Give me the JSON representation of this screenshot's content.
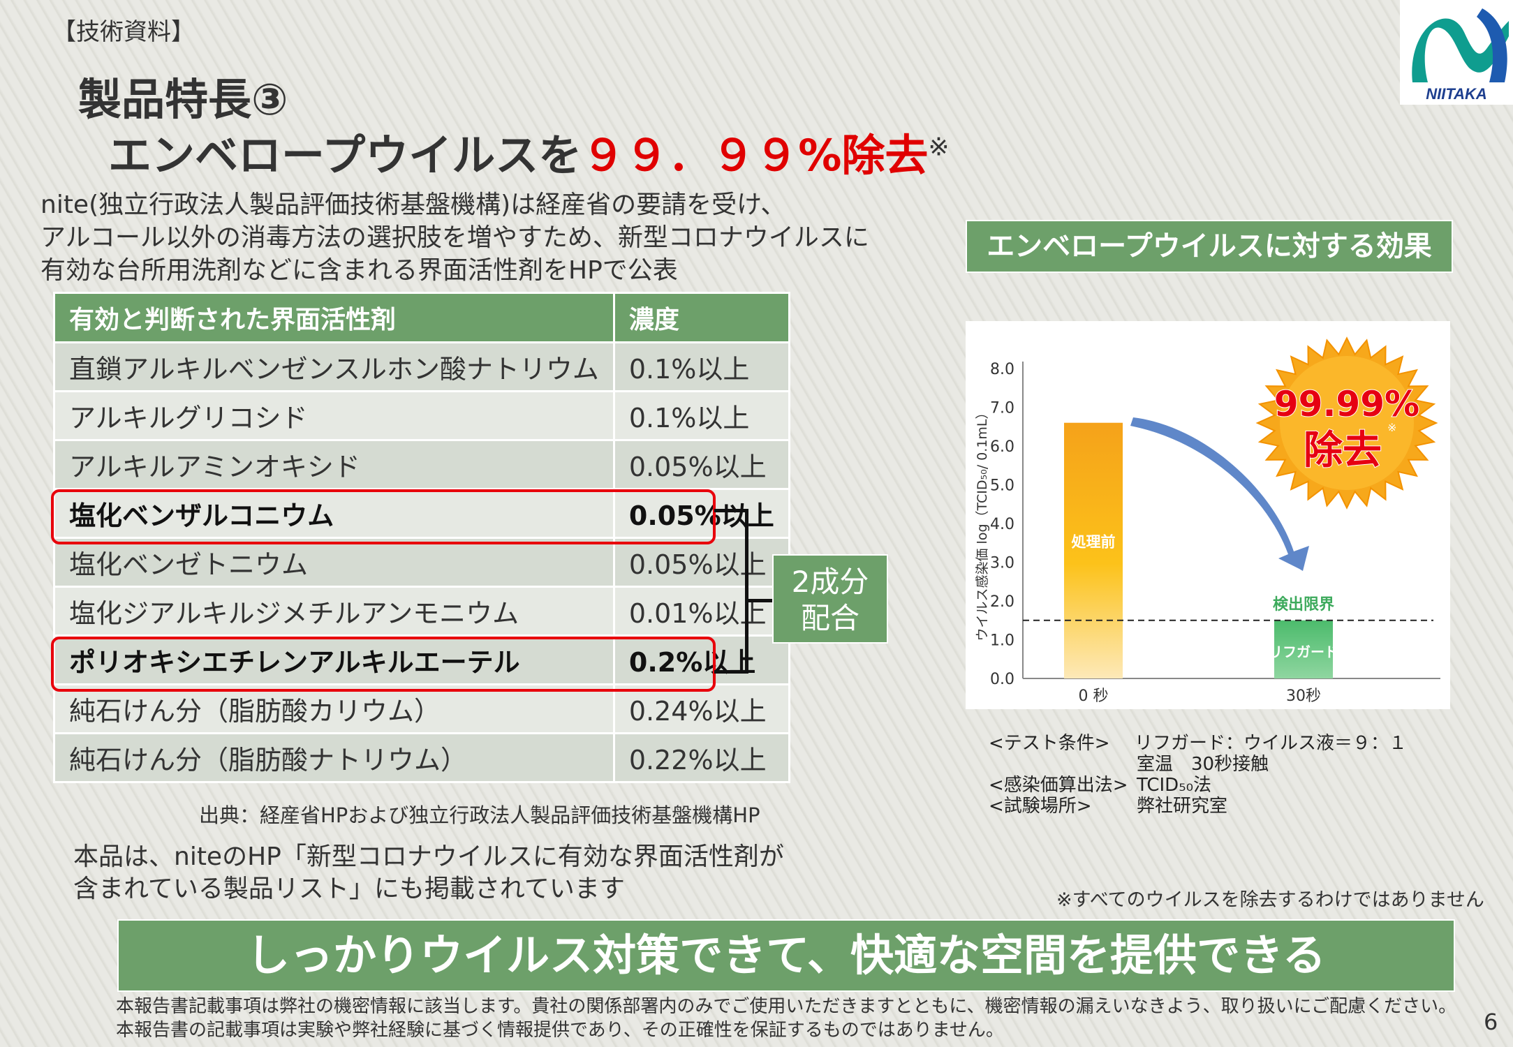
{
  "header": {
    "tag": "【技術資料】",
    "title_line1": "製品特長③",
    "title_line2_prefix": "エンベロープウイルスを",
    "title_line2_highlight": "９９．９９%除去",
    "title_line2_mark": "※"
  },
  "logo": {
    "text": "NIITAKA"
  },
  "intro": {
    "lines": [
      "nite(独立行政法人製品評価技術基盤機構)は経産省の要請を受け、",
      "アルコール以外の消毒方法の選択肢を増やすため、新型コロナウイルスに",
      "有効な台所用洗剤などに含まれる界面活性剤をHPで公表"
    ]
  },
  "table": {
    "headers": [
      "有効と判断された界面活性剤",
      "濃度"
    ],
    "rows": [
      {
        "name": "直鎖アルキルベンゼンスルホン酸ナトリウム",
        "conc": "0.1%以上"
      },
      {
        "name": "アルキルグリコシド",
        "conc": "0.1%以上"
      },
      {
        "name": "アルキルアミンオキシド",
        "conc": "0.05%以上"
      },
      {
        "name": "塩化ベンザルコニウム",
        "conc": "0.05%以上"
      },
      {
        "name": "塩化ベンゼトニウム",
        "conc": "0.05%以上"
      },
      {
        "name": "塩化ジアルキルジメチルアンモニウム",
        "conc": "0.01%以上"
      },
      {
        "name": "ポリオキシエチレンアルキルエーテル",
        "conc": "0.2%以上"
      },
      {
        "name": "純石けん分（脂肪酸カリウム）",
        "conc": "0.24%以上"
      },
      {
        "name": "純石けん分（脂肪酸ナトリウム）",
        "conc": "0.22%以上"
      }
    ],
    "highlighted_rows": [
      3,
      6
    ]
  },
  "combo_label": {
    "line1": "2成分",
    "line2": "配合"
  },
  "source": "出典：経産省HPおよび独立行政法人製品評価技術基盤機構HP",
  "note": {
    "lines": [
      "本品は、niteのHP「新型コロナウイルスに有効な界面活性剤が",
      "含まれている製品リスト」にも掲載されています"
    ]
  },
  "effect_title": "エンベロープウイルスに対する効果",
  "chart_data": {
    "type": "bar",
    "categories": [
      "0 秒",
      "30秒"
    ],
    "values": [
      6.6,
      1.5
    ],
    "bar_labels": [
      "処理前",
      "リフガード"
    ],
    "ylabel": "ウイルス感染価 log（TCID₅₀/ 0.1mL）",
    "ylim": [
      0,
      8
    ],
    "yticks": [
      "0.0",
      "1.0",
      "2.0",
      "3.0",
      "4.0",
      "5.0",
      "6.0",
      "7.0",
      "8.0"
    ],
    "detection_limit": {
      "value": 1.5,
      "label": "検出限界"
    },
    "badge": {
      "line1": "99.99%",
      "line2": "除去",
      "mark": "※"
    },
    "colors": {
      "before": "#f5a21a",
      "after": "#4cbb6c",
      "arrow": "#5f87c9",
      "badge": "#f7a81b"
    }
  },
  "conditions": {
    "test_label": "<テスト条件>",
    "test_value1": "リフガード：ウイルス液＝９：１",
    "test_value2": "室温　30秒接触",
    "calc_label": "<感染価算出法>",
    "calc_value": "TCID₅₀法",
    "place_label": "<試験場所>",
    "place_value": "弊社研究室"
  },
  "disclaimer_note": "※すべてのウイルスを除去するわけではありません",
  "banner": "しっかりウイルス対策できて、快適な空間を提供できる",
  "footer": {
    "line1": "本報告書記載事項は弊社の機密情報に該当します。貴社の関係部署内のみでご使用いただきますとともに、機密情報の漏えいなきよう、取り扱いにご配慮ください。",
    "line2": "本報告書の記載事項は実験や弊社経験に基づく情報提供であり、その正確性を保証するものではありません。"
  },
  "page_number": "6"
}
